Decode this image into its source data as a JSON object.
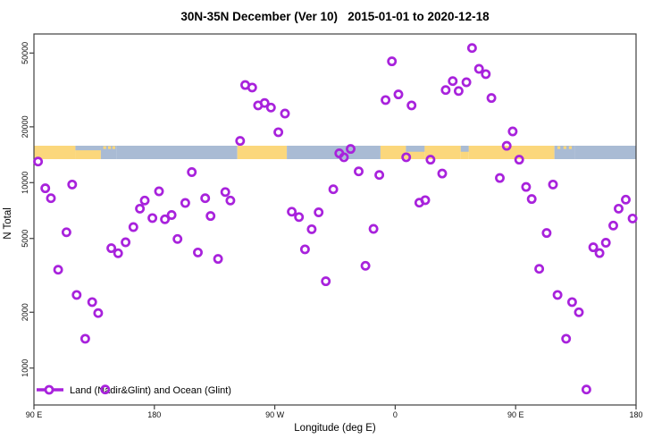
{
  "chart_data": {
    "type": "scatter",
    "title": "30N-35N December (Ver 10)   2015-01-01 to 2020-12-18",
    "xlabel": "Longitude (deg E)",
    "ylabel": "N Total",
    "x_axis": {
      "description": "Longitude wrapping eastward from 90E to 180 (spans 450 deg)",
      "range_deg": [
        90,
        540
      ],
      "ticks": [
        {
          "lon": 90,
          "label": "90 E"
        },
        {
          "lon": 180,
          "label": "180"
        },
        {
          "lon": 270,
          "label": "90 W"
        },
        {
          "lon": 360,
          "label": "0"
        },
        {
          "lon": 450,
          "label": "90 E"
        },
        {
          "lon": 540,
          "label": "180"
        }
      ]
    },
    "y_axis": {
      "scale": "log10",
      "range": [
        630,
        63000
      ],
      "ticks": [
        {
          "value": 1000,
          "label": "1000"
        },
        {
          "value": 2000,
          "label": "2000"
        },
        {
          "value": 5000,
          "label": "5000"
        },
        {
          "value": 10000,
          "label": "10000"
        },
        {
          "value": 20000,
          "label": "20000"
        },
        {
          "value": 50000,
          "label": "50000"
        }
      ]
    },
    "legend": {
      "label": "Land (Nadir&Glint) and Ocean (Glint)",
      "position": "bottom-left",
      "symbol": "line-with-open-circle"
    },
    "marker": {
      "shape": "open-circle",
      "color": "#A822DC"
    },
    "colors": {
      "marker": "#A822DC",
      "land": "#FBD77C",
      "ocean": "#A9BBD4",
      "axis": "#404040",
      "text": "#000000"
    },
    "map_strip": {
      "description": "land/ocean map band for the 30N-35N latitude strip drawn across the plot",
      "n_band": [
        13400,
        15800
      ],
      "segments": [
        {
          "from": 90,
          "to": 121,
          "type": "land"
        },
        {
          "from": 121,
          "to": 140,
          "type": "coast"
        },
        {
          "from": 140,
          "to": 152,
          "type": "islands"
        },
        {
          "from": 152,
          "to": 242,
          "type": "ocean"
        },
        {
          "from": 242,
          "to": 279,
          "type": "land"
        },
        {
          "from": 279,
          "to": 349,
          "type": "ocean"
        },
        {
          "from": 349,
          "to": 368,
          "type": "land"
        },
        {
          "from": 368,
          "to": 382,
          "type": "gulf"
        },
        {
          "from": 382,
          "to": 409,
          "type": "land"
        },
        {
          "from": 409,
          "to": 415,
          "type": "gulf"
        },
        {
          "from": 415,
          "to": 479,
          "type": "land"
        },
        {
          "from": 479,
          "to": 494,
          "type": "islands"
        },
        {
          "from": 494,
          "to": 540,
          "type": "ocean"
        }
      ]
    },
    "points": [
      {
        "lon": 93.1,
        "n": 13000
      },
      {
        "lon": 98.5,
        "n": 9320
      },
      {
        "lon": 102.7,
        "n": 8240
      },
      {
        "lon": 118.6,
        "n": 9770
      },
      {
        "lon": 114.3,
        "n": 5400
      },
      {
        "lon": 208.0,
        "n": 11400
      },
      {
        "lon": 183.5,
        "n": 8980
      },
      {
        "lon": 172.8,
        "n": 8010
      },
      {
        "lon": 169.2,
        "n": 7240
      },
      {
        "lon": 178.5,
        "n": 6440
      },
      {
        "lon": 187.9,
        "n": 6340
      },
      {
        "lon": 192.9,
        "n": 6690
      },
      {
        "lon": 203.1,
        "n": 7770
      },
      {
        "lon": 218.0,
        "n": 8240
      },
      {
        "lon": 233.0,
        "n": 8900
      },
      {
        "lon": 236.8,
        "n": 8010
      },
      {
        "lon": 222.0,
        "n": 6610
      },
      {
        "lon": 164.3,
        "n": 5760
      },
      {
        "lon": 197.3,
        "n": 4970
      },
      {
        "lon": 158.5,
        "n": 4770
      },
      {
        "lon": 147.8,
        "n": 4430
      },
      {
        "lon": 152.9,
        "n": 4160
      },
      {
        "lon": 212.5,
        "n": 4200
      },
      {
        "lon": 227.6,
        "n": 3880
      },
      {
        "lon": 108.1,
        "n": 3390
      },
      {
        "lon": 121.9,
        "n": 2480
      },
      {
        "lon": 133.5,
        "n": 2270
      },
      {
        "lon": 138.0,
        "n": 1980
      },
      {
        "lon": 128.3,
        "n": 1440
      },
      {
        "lon": 143.3,
        "n": 766
      },
      {
        "lon": 247.9,
        "n": 33600
      },
      {
        "lon": 253.1,
        "n": 32600
      },
      {
        "lon": 257.5,
        "n": 26100
      },
      {
        "lon": 262.4,
        "n": 26900
      },
      {
        "lon": 267.1,
        "n": 25400
      },
      {
        "lon": 277.6,
        "n": 23600
      },
      {
        "lon": 272.7,
        "n": 18700
      },
      {
        "lon": 244.1,
        "n": 16800
      },
      {
        "lon": 357.5,
        "n": 45100
      },
      {
        "lon": 352.8,
        "n": 27900
      },
      {
        "lon": 362.4,
        "n": 29900
      },
      {
        "lon": 372.2,
        "n": 26100
      },
      {
        "lon": 318.2,
        "n": 14400
      },
      {
        "lon": 326.7,
        "n": 15200
      },
      {
        "lon": 321.7,
        "n": 13700
      },
      {
        "lon": 368.2,
        "n": 13700
      },
      {
        "lon": 386.4,
        "n": 13300
      },
      {
        "lon": 332.7,
        "n": 11500
      },
      {
        "lon": 348.1,
        "n": 11000
      },
      {
        "lon": 313.7,
        "n": 9210
      },
      {
        "lon": 378.0,
        "n": 7800
      },
      {
        "lon": 382.4,
        "n": 8040
      },
      {
        "lon": 395.1,
        "n": 11200
      },
      {
        "lon": 282.7,
        "n": 6970
      },
      {
        "lon": 288.1,
        "n": 6520
      },
      {
        "lon": 302.8,
        "n": 6920
      },
      {
        "lon": 297.6,
        "n": 5610
      },
      {
        "lon": 343.8,
        "n": 5630
      },
      {
        "lon": 292.6,
        "n": 4370
      },
      {
        "lon": 337.8,
        "n": 3560
      },
      {
        "lon": 308.1,
        "n": 2940
      },
      {
        "lon": 417.4,
        "n": 53200
      },
      {
        "lon": 422.6,
        "n": 41100
      },
      {
        "lon": 427.7,
        "n": 38500
      },
      {
        "lon": 403.0,
        "n": 35300
      },
      {
        "lon": 413.2,
        "n": 34800
      },
      {
        "lon": 397.7,
        "n": 31600
      },
      {
        "lon": 407.4,
        "n": 31200
      },
      {
        "lon": 431.9,
        "n": 28600
      },
      {
        "lon": 447.8,
        "n": 18900
      },
      {
        "lon": 443.3,
        "n": 15800
      },
      {
        "lon": 452.7,
        "n": 13300
      },
      {
        "lon": 438.2,
        "n": 10600
      },
      {
        "lon": 457.8,
        "n": 9480
      },
      {
        "lon": 462.0,
        "n": 8160
      },
      {
        "lon": 477.9,
        "n": 9770
      },
      {
        "lon": 532.3,
        "n": 8100
      },
      {
        "lon": 527.0,
        "n": 7240
      },
      {
        "lon": 537.4,
        "n": 6410
      },
      {
        "lon": 523.0,
        "n": 5870
      },
      {
        "lon": 473.2,
        "n": 5350
      },
      {
        "lon": 517.4,
        "n": 4740
      },
      {
        "lon": 508.0,
        "n": 4480
      },
      {
        "lon": 512.7,
        "n": 4170
      },
      {
        "lon": 467.6,
        "n": 3430
      },
      {
        "lon": 481.3,
        "n": 2480
      },
      {
        "lon": 492.2,
        "n": 2270
      },
      {
        "lon": 497.3,
        "n": 2000
      },
      {
        "lon": 487.7,
        "n": 1440
      },
      {
        "lon": 502.9,
        "n": 766
      }
    ]
  }
}
